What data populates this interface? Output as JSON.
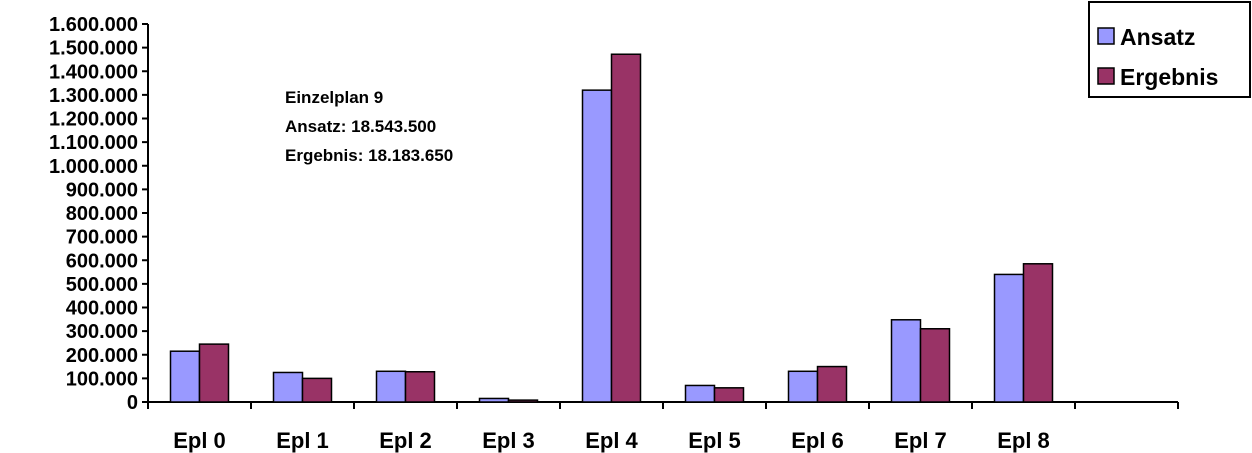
{
  "chart_data": {
    "type": "bar",
    "title": "",
    "xlabel": "",
    "ylabel": "",
    "categories": [
      "Epl 0",
      "Epl 1",
      "Epl 2",
      "Epl 3",
      "Epl 4",
      "Epl 5",
      "Epl 6",
      "Epl 7",
      "Epl 8",
      ""
    ],
    "series": [
      {
        "name": "Ansatz",
        "color": "#9999ff",
        "values": [
          215000,
          125000,
          130000,
          15000,
          1320000,
          70000,
          130000,
          348000,
          540000,
          null
        ]
      },
      {
        "name": "Ergebnis",
        "color": "#993366",
        "values": [
          245000,
          100000,
          128000,
          8000,
          1472000,
          60000,
          150000,
          310000,
          585000,
          null
        ]
      }
    ],
    "ylim": [
      0,
      1600000
    ],
    "ytick_step": 100000,
    "ytick_labels": [
      "0",
      "100.000",
      "200.000",
      "300.000",
      "400.000",
      "500.000",
      "600.000",
      "700.000",
      "800.000",
      "900.000",
      "1.000.000",
      "1.100.000",
      "1.200.000",
      "1.300.000",
      "1.400.000",
      "1.500.000",
      "1.600.000"
    ],
    "grid": false,
    "legend_position": "top-right",
    "annotation": [
      "Einzelplan 9",
      "Ansatz: 18.543.500",
      "Ergebnis: 18.183.650"
    ]
  }
}
